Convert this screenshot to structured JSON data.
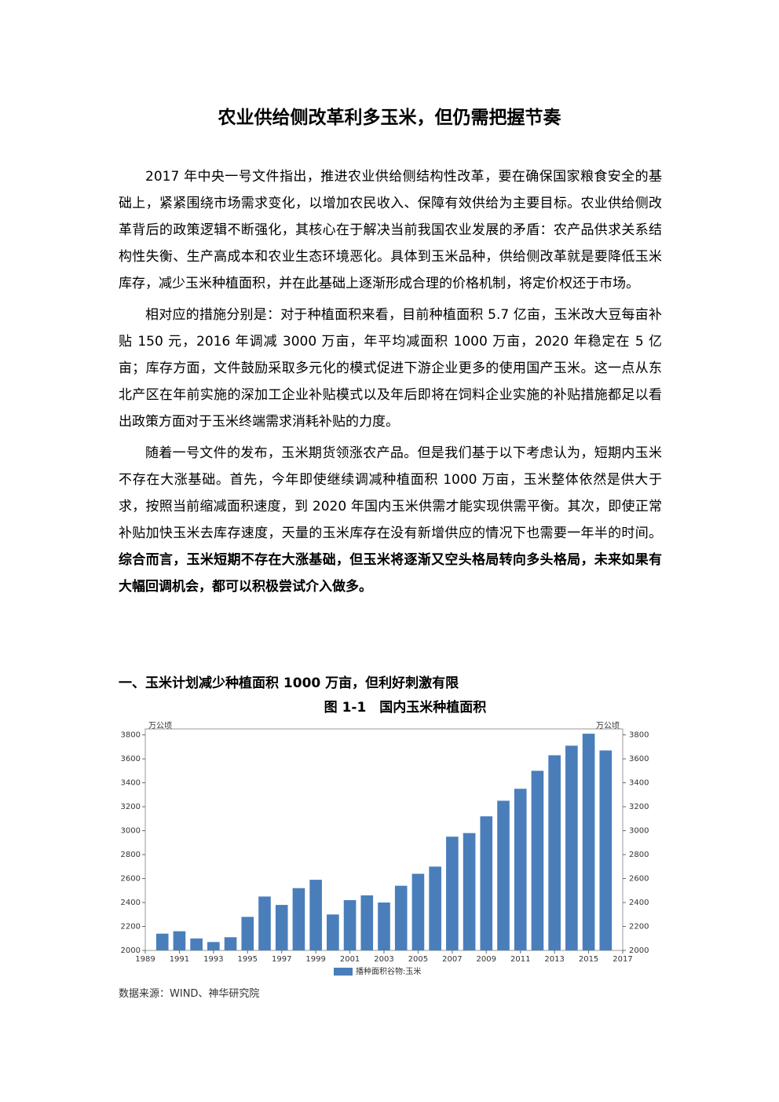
{
  "header": {
    "title": "农业供给侧改革利多玉米，但仍需把握节奏"
  },
  "paragraphs": [
    {
      "runs": [
        {
          "text": "2017 年中央一号文件指出，推进农业供给侧结构性改革，要在确保国家粮食安全的基础上，紧紧围绕市场需求变化，以增加农民收入、保障有效供给为主要目标。农业供给侧改革背后的政策逻辑不断强化，其核心在于解决当前我国农业发展的矛盾：农产品供求关系结构性失衡、生产高成本和农业生态环境恶化。具体到玉米品种，供给侧改革就是要降低玉米库存，减少玉米种植面积，并在此基础上逐渐形成合理的价格机制，将定价权还于市场。",
          "bold": false
        }
      ]
    },
    {
      "runs": [
        {
          "text": "相对应的措施分别是：对于种植面积来看，目前种植面积 5.7 亿亩，玉米改大豆每亩补贴 150 元，2016 年调减 3000 万亩，年平均减面积 1000 万亩，2020 年稳定在 5 亿亩；库存方面，文件鼓励采取多元化的模式促进下游企业更多的使用国产玉米。这一点从东北产区在年前实施的深加工企业补贴模式以及年后即将在饲料企业实施的补贴措施都足以看出政策方面对于玉米终端需求消耗补贴的力度。",
          "bold": false
        }
      ]
    },
    {
      "runs": [
        {
          "text": "随着一号文件的发布，玉米期货领涨农产品。但是我们基于以下考虑认为，短期内玉米不存在大涨基础。首先，今年即使继续调减种植面积 1000 万亩，玉米整体依然是供大于求，按照当前缩减面积速度，到 2020 年国内玉米供需才能实现供需平衡。其次，即使正常补贴加快玉米去库存速度，天量的玉米库存在没有新增供应的情况下也需要一年半的时间。",
          "bold": false
        },
        {
          "text": "综合而言，玉米短期不存在大涨基础，但玉米将逐渐又空头格局转向多头格局，未来如果有大幅回调机会，都可以积极尝试介入做多。",
          "bold": true
        }
      ]
    }
  ],
  "section_heading": "一、玉米计划减少种植面积 1000 万亩，但利好刺激有限",
  "figure_caption": "图 1-1　国内玉米种植面积",
  "chart_data": {
    "type": "bar",
    "y_unit": "万公顷",
    "y2_unit": "万公顷",
    "x": [
      1990,
      1991,
      1992,
      1993,
      1994,
      1995,
      1996,
      1997,
      1998,
      1999,
      2000,
      2001,
      2002,
      2003,
      2004,
      2005,
      2006,
      2007,
      2008,
      2009,
      2010,
      2011,
      2012,
      2013,
      2014,
      2015,
      2016
    ],
    "series": [
      {
        "name": "播种面积谷物:玉米",
        "color": "#4a7ebb",
        "values": [
          2140,
          2160,
          2100,
          2070,
          2110,
          2280,
          2450,
          2380,
          2520,
          2590,
          2300,
          2420,
          2460,
          2400,
          2540,
          2640,
          2700,
          2950,
          2980,
          3120,
          3250,
          3350,
          3500,
          3630,
          3710,
          3810,
          3670
        ]
      }
    ],
    "xlim": [
      1989,
      2017
    ],
    "xticks": [
      1989,
      1991,
      1993,
      1995,
      1997,
      1999,
      2001,
      2003,
      2005,
      2007,
      2009,
      2011,
      2013,
      2015,
      2017
    ],
    "ylim": [
      2000,
      3850
    ],
    "yticks": [
      2000,
      2200,
      2400,
      2600,
      2800,
      3000,
      3200,
      3400,
      3600,
      3800
    ],
    "y2lim": [
      2000,
      3850
    ],
    "y2ticks": [
      2000,
      2200,
      2400,
      2600,
      2800,
      3000,
      3200,
      3400,
      3600,
      3800
    ],
    "legend": "bottom"
  },
  "source": "数据来源：WIND、神华研究院"
}
